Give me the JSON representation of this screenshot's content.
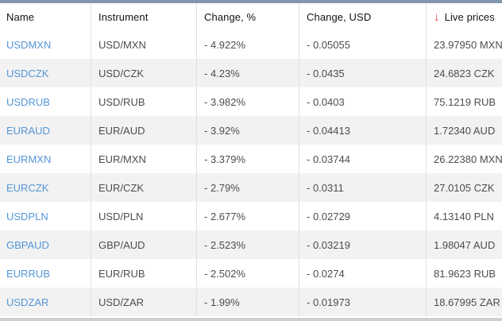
{
  "widget": {
    "accent_colors": {
      "link_blue": "#5496d7",
      "sort_arrow_red": "#ef2e35",
      "top_strip": "#8296ab",
      "row_alt_bg": "#f2f2f2",
      "divider": "#e0e0e0"
    }
  },
  "table": {
    "columns": {
      "name": "Name",
      "instrument": "Instrument",
      "change_pct": "Change, %",
      "change_usd": "Change, USD",
      "live_prices": "Live prices"
    },
    "sort_icon": "down-arrow",
    "rows": [
      {
        "name": "USDMXN",
        "instrument": "USD/MXN",
        "change_pct": "- 4.922%",
        "change_usd": "- 0.05055",
        "price": "23.97950 MXN"
      },
      {
        "name": "USDCZK",
        "instrument": "USD/CZK",
        "change_pct": "- 4.23%",
        "change_usd": "- 0.0435",
        "price": "24.6823 CZK"
      },
      {
        "name": "USDRUB",
        "instrument": "USD/RUB",
        "change_pct": "- 3.982%",
        "change_usd": "- 0.0403",
        "price": "75.1219 RUB"
      },
      {
        "name": "EURAUD",
        "instrument": "EUR/AUD",
        "change_pct": "- 3.92%",
        "change_usd": "- 0.04413",
        "price": "1.72340 AUD"
      },
      {
        "name": "EURMXN",
        "instrument": "EUR/MXN",
        "change_pct": "- 3.379%",
        "change_usd": "- 0.03744",
        "price": "26.22380 MXN"
      },
      {
        "name": "EURCZK",
        "instrument": "EUR/CZK",
        "change_pct": "- 2.79%",
        "change_usd": "- 0.0311",
        "price": "27.0105 CZK"
      },
      {
        "name": "USDPLN",
        "instrument": "USD/PLN",
        "change_pct": "- 2.677%",
        "change_usd": "- 0.02729",
        "price": "4.13140 PLN"
      },
      {
        "name": "GBPAUD",
        "instrument": "GBP/AUD",
        "change_pct": "- 2.523%",
        "change_usd": "- 0.03219",
        "price": "1.98047 AUD"
      },
      {
        "name": "EURRUB",
        "instrument": "EUR/RUB",
        "change_pct": "- 2.502%",
        "change_usd": "- 0.0274",
        "price": "81.9623 RUB"
      },
      {
        "name": "USDZAR",
        "instrument": "USD/ZAR",
        "change_pct": "- 1.99%",
        "change_usd": "- 0.01973",
        "price": "18.67995 ZAR"
      }
    ]
  }
}
